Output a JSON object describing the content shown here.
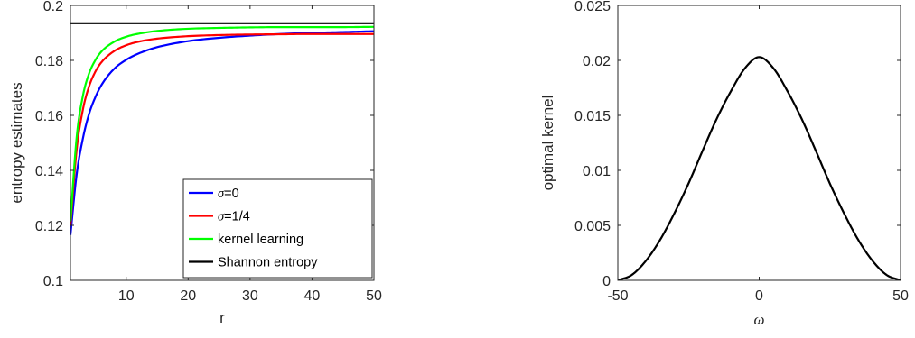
{
  "chart_data": [
    {
      "type": "line",
      "title": "",
      "xlabel": "r",
      "ylabel": "entropy estimates",
      "xlim": [
        1,
        50
      ],
      "ylim": [
        0.1,
        0.2
      ],
      "xticks": [
        10,
        20,
        30,
        40,
        50
      ],
      "xtick_labels": [
        "10",
        "20",
        "30",
        "40",
        "50"
      ],
      "yticks": [
        0.1,
        0.12,
        0.14,
        0.16,
        0.18,
        0.2
      ],
      "ytick_labels": [
        "0.1",
        "0.12",
        "0.14",
        "0.16",
        "0.18",
        "0.2"
      ],
      "grid": false,
      "box": true,
      "legend": {
        "location": "bottom-right",
        "entries": [
          {
            "symbol": "σ",
            "rest": "=0",
            "color": "#0000ff"
          },
          {
            "symbol": "σ",
            "rest": "=1/4",
            "color": "#ff0000"
          },
          {
            "symbol": "",
            "rest": "kernel learning",
            "color": "#00ff00"
          },
          {
            "symbol": "",
            "rest": "Shannon entropy",
            "color": "#000000"
          }
        ]
      },
      "series": [
        {
          "name": "σ=0",
          "color": "#0000ff",
          "x": [
            1,
            2,
            3,
            4,
            5,
            6,
            8,
            10,
            12,
            15,
            20,
            25,
            30,
            35,
            40,
            45,
            50
          ],
          "y": [
            0.1165,
            0.1385,
            0.1515,
            0.1605,
            0.1665,
            0.171,
            0.1768,
            0.1802,
            0.1825,
            0.1848,
            0.187,
            0.1882,
            0.189,
            0.1896,
            0.19,
            0.1903,
            0.1906
          ]
        },
        {
          "name": "σ=1/4",
          "color": "#ff0000",
          "x": [
            1,
            2,
            3,
            4,
            5,
            6,
            8,
            10,
            12,
            15,
            20,
            25,
            30,
            35,
            40,
            45,
            50
          ],
          "y": [
            0.12,
            0.1475,
            0.162,
            0.1705,
            0.1758,
            0.1793,
            0.1833,
            0.1855,
            0.1868,
            0.1879,
            0.1888,
            0.1892,
            0.1894,
            0.1895,
            0.1896,
            0.1896,
            0.1896
          ]
        },
        {
          "name": "kernel learning",
          "color": "#00ff00",
          "x": [
            1,
            2,
            3,
            4,
            5,
            6,
            8,
            10,
            12,
            15,
            20,
            25,
            30,
            35,
            40,
            45,
            50
          ],
          "y": [
            0.1215,
            0.152,
            0.167,
            0.1752,
            0.18,
            0.1832,
            0.1867,
            0.1886,
            0.1897,
            0.1907,
            0.1915,
            0.1918,
            0.192,
            0.1921,
            0.1921,
            0.1921,
            0.1922
          ]
        },
        {
          "name": "Shannon entropy",
          "color": "#000000",
          "x": [
            1,
            50
          ],
          "y": [
            0.1935,
            0.1935
          ]
        }
      ]
    },
    {
      "type": "line",
      "title": "",
      "xlabel": "ω",
      "ylabel": "optimal kernel",
      "xlim": [
        -50,
        50
      ],
      "ylim": [
        0,
        0.025
      ],
      "xticks": [
        -50,
        0,
        50
      ],
      "xtick_labels": [
        "-50",
        "0",
        "50"
      ],
      "yticks": [
        0,
        0.005,
        0.01,
        0.015,
        0.02,
        0.025
      ],
      "ytick_labels": [
        "0",
        "0.005",
        "0.01",
        "0.015",
        "0.02",
        "0.025"
      ],
      "grid": false,
      "box": true,
      "series": [
        {
          "color": "#000000",
          "x": [
            -50,
            -45,
            -40,
            -35,
            -30,
            -25,
            -20,
            -15,
            -10,
            -5,
            0,
            5,
            10,
            15,
            20,
            25,
            30,
            35,
            40,
            45,
            50
          ],
          "y": [
            0.0,
            0.0005,
            0.0018,
            0.0037,
            0.0061,
            0.0088,
            0.0118,
            0.0147,
            0.0172,
            0.0193,
            0.0203,
            0.0193,
            0.0172,
            0.0147,
            0.0118,
            0.0088,
            0.0061,
            0.0037,
            0.0018,
            0.0005,
            0.0
          ]
        }
      ]
    }
  ]
}
